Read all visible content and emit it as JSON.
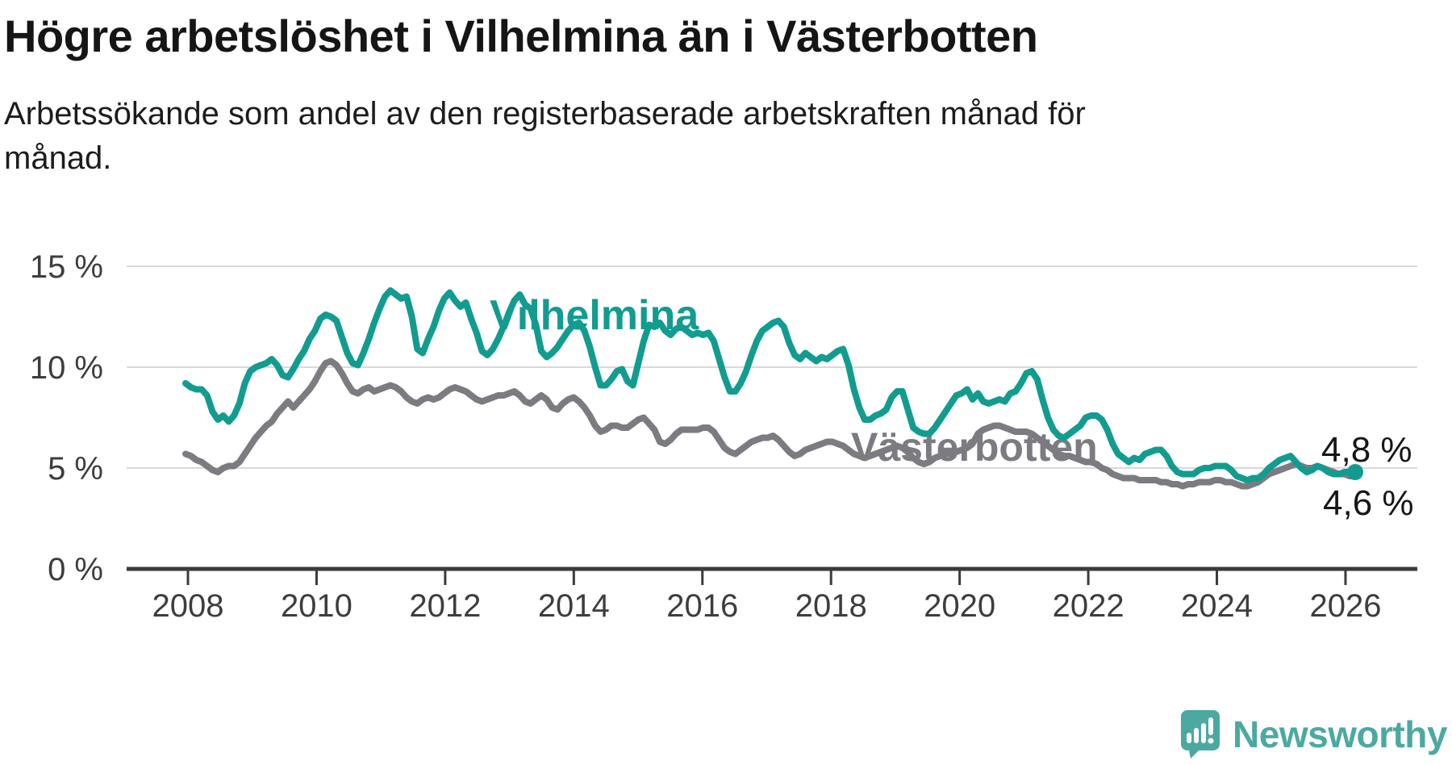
{
  "header": {
    "title": "Högre arbetslöshet i Vilhelmina än i Västerbotten",
    "subtitle": "Arbetssökande som andel av den registerbaserade arbetskraften månad för månad."
  },
  "chart_data": {
    "type": "line",
    "x_months_start": "2008-01",
    "x_months_end": "2026-02",
    "ylim": [
      0,
      16
    ],
    "grid": "horizontal",
    "legend_position": "inline-labels",
    "yticks": [
      {
        "value": 0,
        "label": "0 %"
      },
      {
        "value": 5,
        "label": "5 %"
      },
      {
        "value": 10,
        "label": "10 %"
      },
      {
        "value": 15,
        "label": "15 %"
      }
    ],
    "xticks": [
      {
        "year": 2008,
        "label": "2008"
      },
      {
        "year": 2010,
        "label": "2010"
      },
      {
        "year": 2012,
        "label": "2012"
      },
      {
        "year": 2014,
        "label": "2014"
      },
      {
        "year": 2016,
        "label": "2016"
      },
      {
        "year": 2018,
        "label": "2018"
      },
      {
        "year": 2020,
        "label": "2020"
      },
      {
        "year": 2022,
        "label": "2022"
      },
      {
        "year": 2024,
        "label": "2024"
      },
      {
        "year": 2026,
        "label": "2026"
      }
    ],
    "series": [
      {
        "name": "Västerbotten",
        "color": "#7b7b81",
        "end_label": "4,6 %",
        "values": [
          5.7,
          5.6,
          5.4,
          5.3,
          5.1,
          4.9,
          4.8,
          5.0,
          5.1,
          5.1,
          5.3,
          5.7,
          6.1,
          6.5,
          6.8,
          7.1,
          7.3,
          7.7,
          8.0,
          8.3,
          8.0,
          8.3,
          8.6,
          8.9,
          9.3,
          9.8,
          10.2,
          10.3,
          10.1,
          9.7,
          9.2,
          8.8,
          8.7,
          8.9,
          9.0,
          8.8,
          8.9,
          9.0,
          9.1,
          9.0,
          8.8,
          8.5,
          8.3,
          8.2,
          8.4,
          8.5,
          8.4,
          8.5,
          8.7,
          8.9,
          9.0,
          8.9,
          8.8,
          8.6,
          8.4,
          8.3,
          8.4,
          8.5,
          8.6,
          8.6,
          8.7,
          8.8,
          8.6,
          8.3,
          8.2,
          8.4,
          8.6,
          8.4,
          8.0,
          7.9,
          8.2,
          8.4,
          8.5,
          8.3,
          8.0,
          7.6,
          7.1,
          6.8,
          6.9,
          7.1,
          7.1,
          7.0,
          7.0,
          7.2,
          7.4,
          7.5,
          7.2,
          6.9,
          6.3,
          6.2,
          6.4,
          6.7,
          6.9,
          6.9,
          6.9,
          6.9,
          7.0,
          7.0,
          6.8,
          6.4,
          6.0,
          5.8,
          5.7,
          5.9,
          6.1,
          6.3,
          6.4,
          6.5,
          6.5,
          6.6,
          6.4,
          6.1,
          5.8,
          5.6,
          5.7,
          5.9,
          6.0,
          6.1,
          6.2,
          6.3,
          6.3,
          6.2,
          6.1,
          5.9,
          5.7,
          5.6,
          5.5,
          5.6,
          5.7,
          5.8,
          5.9,
          6.0,
          6.1,
          6.0,
          5.8,
          5.5,
          5.3,
          5.2,
          5.3,
          5.5,
          5.6,
          5.7,
          5.7,
          5.8,
          5.9,
          6.0,
          6.2,
          6.7,
          6.9,
          7.0,
          7.1,
          7.1,
          7.0,
          6.9,
          6.8,
          6.8,
          6.8,
          6.7,
          6.5,
          6.3,
          6.1,
          5.9,
          5.7,
          5.6,
          5.6,
          5.5,
          5.4,
          5.3,
          5.3,
          5.2,
          5.0,
          4.9,
          4.7,
          4.6,
          4.5,
          4.5,
          4.5,
          4.4,
          4.4,
          4.4,
          4.4,
          4.3,
          4.3,
          4.2,
          4.2,
          4.1,
          4.2,
          4.2,
          4.3,
          4.3,
          4.3,
          4.4,
          4.4,
          4.3,
          4.3,
          4.2,
          4.1,
          4.1,
          4.2,
          4.3,
          4.5,
          4.7,
          4.8,
          4.9,
          5.0,
          5.1,
          5.2,
          5.1,
          5.0,
          5.0,
          5.1,
          5.0,
          4.9,
          4.8,
          4.7,
          4.7,
          4.6,
          4.6
        ]
      },
      {
        "name": "Vilhelmina",
        "color": "#129c90",
        "end_label": "4,8 %",
        "values": [
          9.2,
          9.0,
          8.9,
          8.9,
          8.6,
          7.8,
          7.4,
          7.6,
          7.3,
          7.6,
          8.2,
          9.2,
          9.8,
          10.0,
          10.1,
          10.2,
          10.4,
          10.1,
          9.6,
          9.5,
          9.9,
          10.4,
          10.8,
          11.4,
          11.8,
          12.4,
          12.6,
          12.5,
          12.3,
          11.5,
          10.7,
          10.2,
          10.1,
          10.7,
          11.4,
          12.2,
          12.9,
          13.5,
          13.8,
          13.6,
          13.4,
          13.5,
          12.5,
          10.9,
          10.7,
          11.4,
          12.0,
          12.8,
          13.4,
          13.7,
          13.3,
          13.0,
          13.2,
          12.4,
          11.7,
          10.8,
          10.6,
          10.9,
          11.4,
          12.0,
          12.7,
          13.3,
          13.6,
          13.1,
          12.9,
          12.1,
          10.8,
          10.5,
          10.7,
          11.0,
          11.4,
          11.8,
          12.1,
          12.2,
          11.8,
          11.0,
          10.0,
          9.1,
          9.1,
          9.4,
          9.8,
          9.9,
          9.3,
          9.1,
          10.2,
          11.3,
          12.1,
          12.0,
          12.2,
          11.8,
          11.6,
          11.9,
          12.0,
          11.8,
          11.6,
          11.7,
          11.6,
          11.7,
          11.3,
          10.4,
          9.5,
          8.8,
          8.8,
          9.2,
          9.8,
          10.6,
          11.3,
          11.8,
          12.0,
          12.2,
          12.3,
          12.0,
          11.2,
          10.6,
          10.4,
          10.7,
          10.5,
          10.3,
          10.5,
          10.4,
          10.6,
          10.8,
          10.9,
          10.1,
          8.9,
          8.0,
          7.4,
          7.4,
          7.6,
          7.7,
          7.9,
          8.5,
          8.8,
          8.8,
          7.9,
          7.0,
          6.8,
          6.7,
          6.7,
          7.0,
          7.4,
          7.8,
          8.2,
          8.6,
          8.7,
          8.9,
          8.4,
          8.7,
          8.3,
          8.2,
          8.3,
          8.4,
          8.3,
          8.7,
          8.8,
          9.2,
          9.7,
          9.8,
          9.4,
          8.4,
          7.5,
          6.9,
          6.6,
          6.5,
          6.7,
          6.9,
          7.1,
          7.5,
          7.6,
          7.6,
          7.4,
          6.9,
          6.2,
          5.7,
          5.5,
          5.3,
          5.5,
          5.4,
          5.7,
          5.8,
          5.9,
          5.9,
          5.6,
          5.1,
          4.8,
          4.7,
          4.7,
          4.7,
          4.9,
          5.0,
          5.0,
          5.1,
          5.1,
          5.1,
          4.9,
          4.6,
          4.5,
          4.4,
          4.5,
          4.5,
          4.7,
          5.0,
          5.2,
          5.4,
          5.5,
          5.6,
          5.3,
          5.0,
          4.8,
          4.9,
          5.1,
          5.0,
          4.8,
          4.7,
          4.7,
          4.8,
          4.8,
          4.8
        ]
      }
    ],
    "inline_labels": [
      {
        "text": "Vilhelmina",
        "series": "Vilhelmina"
      },
      {
        "text": "Västerbotten",
        "series": "Västerbotten"
      }
    ]
  },
  "colors": {
    "background": "#ffffff",
    "gridline": "#d9d9d9",
    "axis": "#3b3b3b",
    "tick_label": "#3d3d3d",
    "end_label": "#161616",
    "vilhelmina": "#129c90",
    "vasterbotten": "#7b7b81",
    "logo": "#4ba9a2"
  },
  "logo": {
    "text": "Newsworthy"
  }
}
